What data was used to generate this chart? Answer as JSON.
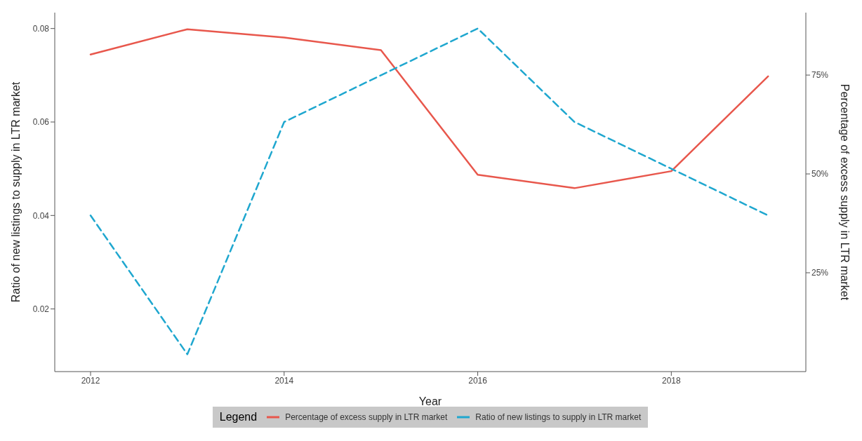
{
  "chart_data": {
    "type": "line",
    "xlabel": "Year",
    "ylabel": "Ratio of new listings to supply in LTR market",
    "y2label": "Percentage of excess supply in LTR market",
    "legend_title": "Legend",
    "x": [
      2012,
      2013,
      2014,
      2015,
      2016,
      2017,
      2018,
      2019
    ],
    "series": [
      {
        "name": "Percentage of excess supply in LTR market",
        "color": "#e8574c",
        "axis": "y2",
        "line_style": "solid",
        "values": [
          80.2,
          86.6,
          84.5,
          81.3,
          49.8,
          46.4,
          50.7,
          74.7
        ]
      },
      {
        "name": "Ratio of new listings to supply in LTR market",
        "color": "#1fa7cf",
        "axis": "y",
        "line_style": "dashed",
        "values": [
          0.04,
          0.0103,
          0.06,
          0.07,
          0.08,
          0.06,
          0.05,
          0.04
        ]
      }
    ],
    "xlim": [
      2011.63,
      2019.39
    ],
    "xticks": [
      2012,
      2014,
      2016,
      2018
    ],
    "ylim": [
      0.0066,
      0.0834
    ],
    "yticks": [
      0.02,
      0.04,
      0.06,
      0.08
    ],
    "y2lim": [
      0,
      90.8
    ],
    "y2ticks": [
      {
        "value": 25,
        "label": "25%"
      },
      {
        "value": 50,
        "label": "50%"
      },
      {
        "value": 75,
        "label": "75%"
      }
    ],
    "grid": false,
    "legend": "bottom",
    "marker": "none"
  }
}
